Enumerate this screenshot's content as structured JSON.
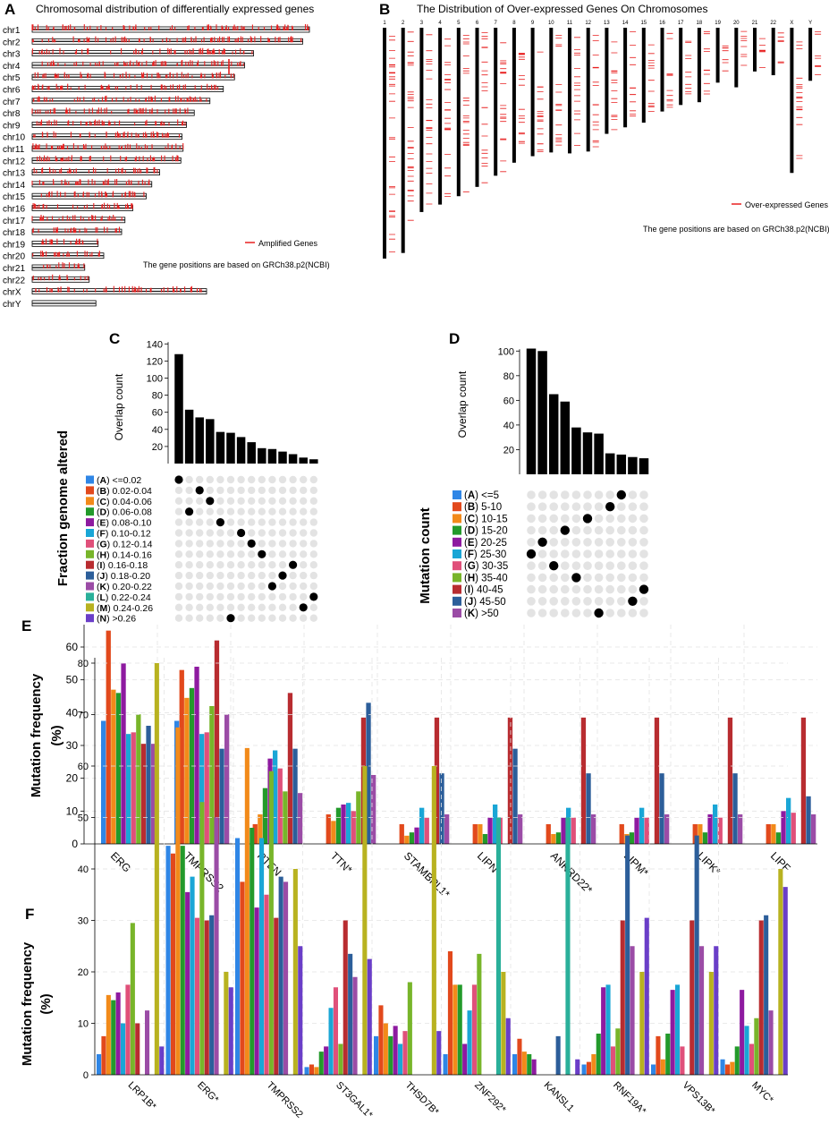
{
  "colors": {
    "A": "#2f86e6",
    "B": "#e2491c",
    "C": "#f28a1a",
    "D": "#239a2b",
    "E": "#8e1aa0",
    "F": "#1aa6d6",
    "G": "#e0507a",
    "H": "#78b52a",
    "I": "#b82c30",
    "J": "#2c5e9a",
    "K": "#9b4ca6",
    "L": "#2ab09a",
    "M": "#b8b220",
    "N": "#6a3ec8",
    "gene_mark": "#e82020",
    "bar": "#000000",
    "dot_off": "#e3e3e3",
    "dot_on": "#000000"
  },
  "panelA": {
    "letter": "A",
    "title": "Chromosomal distribution of differentially expressed genes",
    "legend": "Amplified Genes",
    "note": "The gene positions are based on GRCh38.p2(NCBI)",
    "chromosomes": [
      {
        "name": "chr1",
        "len": 248
      },
      {
        "name": "chr2",
        "len": 242
      },
      {
        "name": "chr3",
        "len": 198
      },
      {
        "name": "chr4",
        "len": 190
      },
      {
        "name": "chr5",
        "len": 181
      },
      {
        "name": "chr6",
        "len": 171
      },
      {
        "name": "chr7",
        "len": 159
      },
      {
        "name": "chr8",
        "len": 145
      },
      {
        "name": "chr9",
        "len": 138
      },
      {
        "name": "chr10",
        "len": 134
      },
      {
        "name": "chr11",
        "len": 135
      },
      {
        "name": "chr12",
        "len": 133
      },
      {
        "name": "chr13",
        "len": 114
      },
      {
        "name": "chr14",
        "len": 107
      },
      {
        "name": "chr15",
        "len": 102
      },
      {
        "name": "chr16",
        "len": 90
      },
      {
        "name": "chr17",
        "len": 83
      },
      {
        "name": "chr18",
        "len": 80
      },
      {
        "name": "chr19",
        "len": 59
      },
      {
        "name": "chr20",
        "len": 64
      },
      {
        "name": "chr21",
        "len": 47
      },
      {
        "name": "chr22",
        "len": 51
      },
      {
        "name": "chrX",
        "len": 156
      },
      {
        "name": "chrY",
        "len": 57
      }
    ]
  },
  "panelB": {
    "letter": "B",
    "title": "The Distribution of Over-expressed Genes On Chromosomes",
    "legend": "Over-expressed Genes",
    "note": "The gene positions are based on GRCh38.p2(NCBI)",
    "chromosomes": [
      {
        "name": "1",
        "len": 248
      },
      {
        "name": "2",
        "len": 242
      },
      {
        "name": "3",
        "len": 198
      },
      {
        "name": "4",
        "len": 190
      },
      {
        "name": "5",
        "len": 181
      },
      {
        "name": "6",
        "len": 171
      },
      {
        "name": "7",
        "len": 159
      },
      {
        "name": "8",
        "len": 145
      },
      {
        "name": "9",
        "len": 138
      },
      {
        "name": "10",
        "len": 134
      },
      {
        "name": "11",
        "len": 135
      },
      {
        "name": "12",
        "len": 133
      },
      {
        "name": "13",
        "len": 114
      },
      {
        "name": "14",
        "len": 107
      },
      {
        "name": "15",
        "len": 102
      },
      {
        "name": "16",
        "len": 90
      },
      {
        "name": "17",
        "len": 83
      },
      {
        "name": "18",
        "len": 80
      },
      {
        "name": "19",
        "len": 59
      },
      {
        "name": "20",
        "len": 64
      },
      {
        "name": "21",
        "len": 47
      },
      {
        "name": "22",
        "len": 51
      },
      {
        "name": "X",
        "len": 156
      },
      {
        "name": "Y",
        "len": 57
      }
    ]
  },
  "chart_data": [
    {
      "panel": "C",
      "type": "bar",
      "ylabel": "Overlap count",
      "yticks": [
        20,
        40,
        60,
        80,
        100,
        120,
        140
      ],
      "ylim": [
        0,
        145
      ],
      "values": [
        128,
        63,
        54,
        52,
        37,
        36,
        31,
        25,
        18,
        17,
        14,
        11,
        7,
        5
      ],
      "legend_title": "Fraction genome altered",
      "groups": [
        {
          "key": "A",
          "label": "<=0.02"
        },
        {
          "key": "B",
          "label": "0.02-0.04"
        },
        {
          "key": "C",
          "label": "0.04-0.06"
        },
        {
          "key": "D",
          "label": "0.06-0.08"
        },
        {
          "key": "E",
          "label": "0.08-0.10"
        },
        {
          "key": "F",
          "label": "0.10-0.12"
        },
        {
          "key": "G",
          "label": "0.12-0.14"
        },
        {
          "key": "H",
          "label": "0.14-0.16"
        },
        {
          "key": "I",
          "label": "0.16-0.18"
        },
        {
          "key": "J",
          "label": "0.18-0.20"
        },
        {
          "key": "K",
          "label": "0.20-0.22"
        },
        {
          "key": "L",
          "label": "0.22-0.24"
        },
        {
          "key": "M",
          "label": "0.24-0.26"
        },
        {
          "key": "N",
          "label": ">0.26"
        }
      ],
      "matrix_column_per_row": [
        0,
        2,
        3,
        1,
        4,
        6,
        7,
        8,
        11,
        10,
        9,
        13,
        12,
        5
      ]
    },
    {
      "panel": "D",
      "type": "bar",
      "ylabel": "Overlap count",
      "yticks": [
        20,
        40,
        60,
        80,
        100
      ],
      "ylim": [
        0,
        110
      ],
      "values": [
        102,
        100,
        65,
        59,
        38,
        34,
        33,
        17,
        16,
        14,
        13
      ],
      "legend_title": "Mutation count",
      "groups": [
        {
          "key": "A",
          "label": "<=5"
        },
        {
          "key": "B",
          "label": "5-10"
        },
        {
          "key": "C",
          "label": "10-15"
        },
        {
          "key": "D",
          "label": "15-20"
        },
        {
          "key": "E",
          "label": "20-25"
        },
        {
          "key": "F",
          "label": "25-30"
        },
        {
          "key": "G",
          "label": "30-35"
        },
        {
          "key": "H",
          "label": "35-40"
        },
        {
          "key": "I",
          "label": "40-45"
        },
        {
          "key": "J",
          "label": "45-50"
        },
        {
          "key": "K",
          "label": ">50"
        }
      ],
      "matrix_column_per_row": [
        8,
        7,
        5,
        3,
        1,
        0,
        2,
        4,
        10,
        9,
        6
      ]
    },
    {
      "panel": "E",
      "type": "bar",
      "ylabel": "Mutation frequency (%)",
      "yticks": [
        0,
        10,
        20,
        30,
        40,
        50,
        60
      ],
      "ylim": [
        0,
        66
      ],
      "categories": [
        "ERG",
        "TMPRSS2",
        "PTEN",
        "TTN*",
        "STAMBPL1*",
        "LIPN*",
        "ANKRD22*",
        "LIPM*",
        "LIPK*",
        "LIPF"
      ],
      "series_keys": [
        "A",
        "B",
        "C",
        "D",
        "E",
        "F",
        "G",
        "H",
        "I",
        "J",
        "K"
      ],
      "values": [
        [
          37.5,
          65,
          47,
          46,
          55,
          33.5,
          34,
          39.5,
          30.5,
          36,
          30.5
        ],
        [
          37.5,
          53,
          44.5,
          47.5,
          54,
          33.5,
          34,
          42,
          62,
          29,
          39.5
        ],
        [
          0,
          6,
          9,
          17,
          26,
          28.5,
          23,
          16,
          46,
          29,
          15.5
        ],
        [
          0,
          9,
          7,
          11,
          12,
          12.5,
          10,
          16,
          38.5,
          43,
          21
        ],
        [
          0,
          6,
          2.5,
          3.5,
          5,
          11,
          8,
          0,
          38.5,
          21.5,
          9
        ],
        [
          0,
          6,
          6,
          3,
          8,
          12,
          8,
          0,
          38.5,
          29,
          9
        ],
        [
          0,
          6,
          3,
          3.5,
          8,
          11,
          8,
          0,
          38.5,
          21.5,
          9
        ],
        [
          0,
          6,
          3,
          3.5,
          8,
          11,
          8,
          0,
          38.5,
          21.5,
          9
        ],
        [
          0,
          6,
          6,
          3.5,
          9,
          12,
          8,
          0,
          38.5,
          21.5,
          9
        ],
        [
          0,
          6,
          6,
          3.5,
          10,
          14,
          9.5,
          0,
          38.5,
          14.5,
          9
        ]
      ]
    },
    {
      "panel": "F",
      "type": "bar",
      "ylabel": "Mutation frequency (%)",
      "yticks": [
        0,
        10,
        20,
        30,
        40,
        50,
        60,
        70,
        80
      ],
      "ylim": [
        0,
        82
      ],
      "categories": [
        "LRP1B*",
        "ERG*",
        "TMPRSS2",
        "ST3GAL1*",
        "THSD7B*",
        "ZNF292*",
        "KANSL1",
        "RNF19A*",
        "VPS13B*",
        "MYC*"
      ],
      "series_keys": [
        "A",
        "B",
        "C",
        "D",
        "E",
        "F",
        "G",
        "H",
        "I",
        "J",
        "K",
        "L",
        "M",
        "N"
      ],
      "values": [
        [
          4,
          7.5,
          15.5,
          14.5,
          16,
          10,
          17.5,
          29.5,
          10,
          0,
          12.5,
          0,
          80,
          5.5
        ],
        [
          44.5,
          43,
          67.5,
          44.5,
          35.5,
          38.5,
          30.5,
          53,
          30,
          31,
          50,
          0,
          20,
          17
        ],
        [
          46,
          37.5,
          63.5,
          48,
          32.5,
          46,
          35,
          59,
          30.5,
          38.5,
          37.5,
          0,
          40,
          25
        ],
        [
          1.5,
          2,
          1.5,
          4.5,
          5.5,
          13,
          17,
          6,
          30,
          23.5,
          19,
          0,
          60,
          22.5
        ],
        [
          7.5,
          13.5,
          10,
          7.5,
          9.5,
          6,
          8.5,
          18,
          0,
          0,
          0,
          0,
          60,
          8.5
        ],
        [
          4,
          24,
          17.5,
          17.5,
          6,
          12.5,
          17.5,
          23.5,
          0,
          0,
          0,
          50,
          20,
          11
        ],
        [
          4,
          7,
          4.5,
          4,
          3,
          0,
          0,
          0,
          0,
          7.5,
          0,
          50,
          0,
          3
        ],
        [
          2,
          2.5,
          4,
          8,
          17,
          17.5,
          5.5,
          9,
          30,
          46.5,
          25,
          0,
          20,
          30.5
        ],
        [
          2,
          7.5,
          3,
          8,
          16.5,
          17.5,
          5.5,
          0,
          30,
          46.5,
          25,
          0,
          20,
          25
        ],
        [
          3,
          2,
          2.5,
          5.5,
          16.5,
          9.5,
          6,
          11,
          30,
          31,
          12.5,
          0,
          40,
          36.5
        ]
      ]
    }
  ]
}
